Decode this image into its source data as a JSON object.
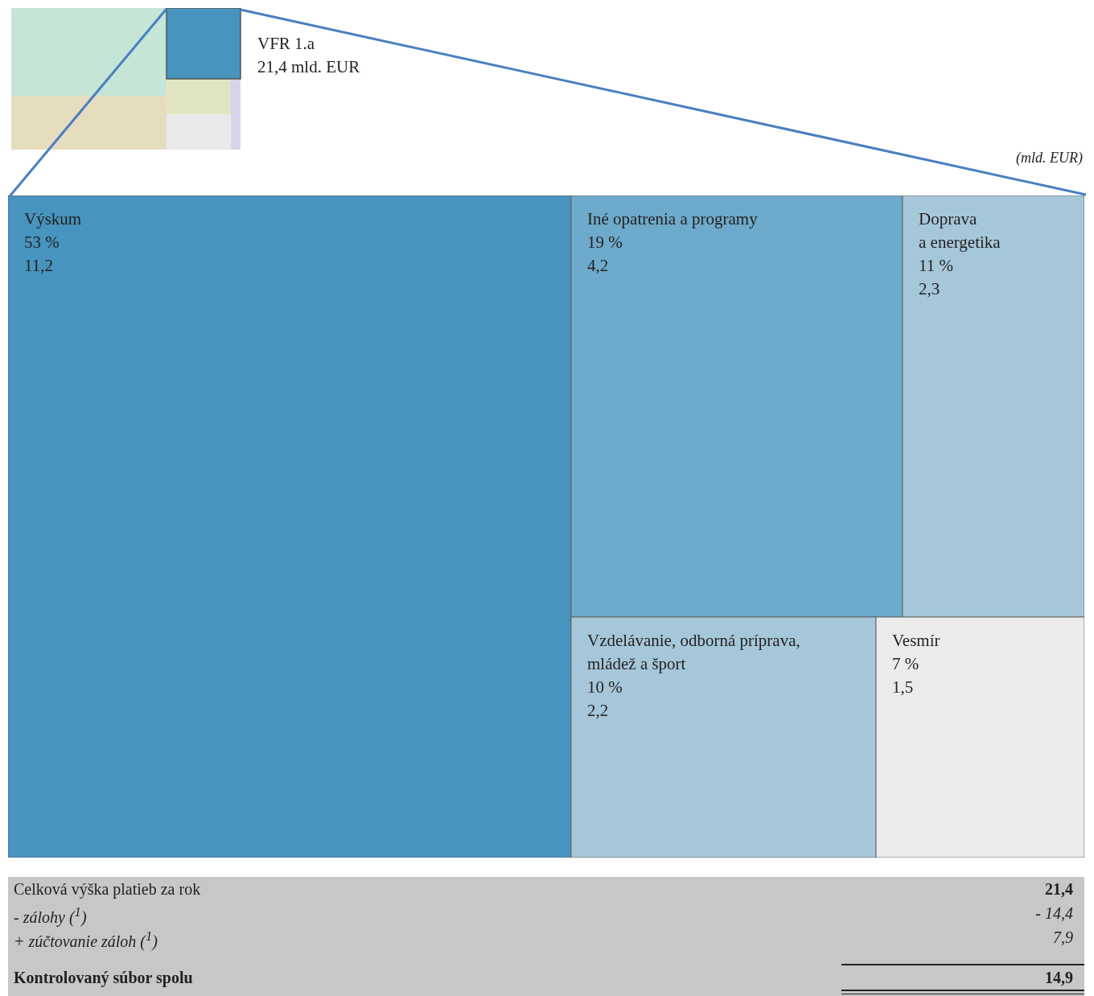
{
  "chart_data": {
    "type": "other",
    "title": "VFR 1.a\n21,4 mld. EUR",
    "subtitle": "(mld. EUR)",
    "categories": [
      "Výskum",
      "Iné opatrenia a programy",
      "Doprava\na energetika",
      "Vzdelávanie, odborná príprava,\nmládež a šport",
      "Vesmír"
    ],
    "values": [
      11.2,
      4.2,
      2.3,
      2.2,
      1.5
    ],
    "value_labels": [
      "53 %\n11,2",
      "19 %\n4,2",
      "11 %\n2,3",
      "10 %\n2,2",
      "7 %\n1,5"
    ],
    "colors": [
      "#4794bf",
      "#6eaacb",
      "#a6c7da",
      "#a6c7da",
      "#ebebeb"
    ],
    "annotations": [
      "Celková výška platieb za rok",
      "21,4",
      "- zálohy ($^{1}$)",
      "- 14,4",
      "+ zúčtovanie záloh ($^{1}$)",
      "7,9",
      "Kontrolovaný súbor spolu",
      "14,9"
    ]
  }
}
